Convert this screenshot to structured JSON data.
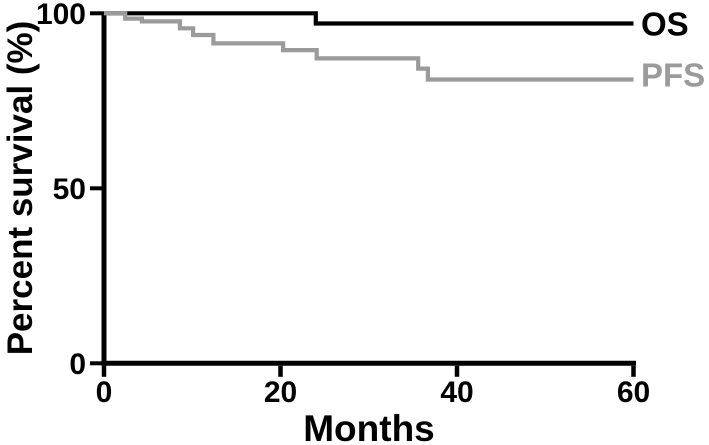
{
  "figure": {
    "kind": "kaplan-meier-survival-plot"
  },
  "chart_data": {
    "type": "line",
    "subtype": "step-survival",
    "title": "",
    "xlabel": "Months",
    "ylabel": "Percent survival (%)",
    "xlim": [
      0,
      60
    ],
    "ylim": [
      0,
      100
    ],
    "x_ticks": [
      0,
      20,
      40,
      60
    ],
    "y_ticks": [
      100,
      50,
      0
    ],
    "grid": false,
    "legend_position": "end-of-line-right",
    "axis_color": "#000000",
    "series": [
      {
        "name": "OS",
        "color": "#000000",
        "step_points": [
          [
            0,
            100
          ],
          [
            24,
            100
          ],
          [
            24,
            97.1
          ],
          [
            60,
            97.1
          ]
        ]
      },
      {
        "name": "PFS",
        "color": "#9b9b9b",
        "step_points": [
          [
            0,
            100
          ],
          [
            2.4,
            100
          ],
          [
            2.4,
            98.5
          ],
          [
            4.3,
            98.5
          ],
          [
            4.3,
            97.7
          ],
          [
            8.6,
            97.7
          ],
          [
            8.6,
            95.7
          ],
          [
            10.1,
            95.7
          ],
          [
            10.1,
            93.8
          ],
          [
            12.4,
            93.8
          ],
          [
            12.4,
            91.4
          ],
          [
            20.3,
            91.4
          ],
          [
            20.3,
            89.5
          ],
          [
            24.1,
            89.5
          ],
          [
            24.1,
            87.1
          ],
          [
            35.6,
            87.1
          ],
          [
            35.6,
            84.2
          ],
          [
            36.7,
            84.2
          ],
          [
            36.7,
            81.1
          ],
          [
            60,
            81.1
          ]
        ]
      }
    ]
  }
}
